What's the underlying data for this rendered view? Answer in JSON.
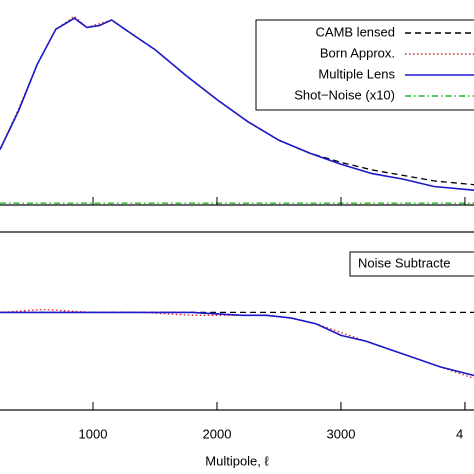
{
  "chart_data": [
    {
      "type": "line",
      "x": [
        250,
        400,
        550,
        700,
        850,
        950,
        1050,
        1150,
        1300,
        1500,
        1750,
        2000,
        2250,
        2500,
        2750,
        3000,
        3250,
        3500,
        3750,
        4073
      ],
      "xlim": [
        250,
        4073
      ],
      "ylim": [
        0,
        1.1
      ],
      "legend": "upper right",
      "series": [
        {
          "name": "CAMB lensed",
          "color": "#000000",
          "style": "dashed",
          "values": [
            0.3,
            0.51,
            0.76,
            0.95,
            1.01,
            0.96,
            0.97,
            1.0,
            0.93,
            0.84,
            0.7,
            0.57,
            0.45,
            0.35,
            0.28,
            0.23,
            0.19,
            0.16,
            0.13,
            0.11
          ]
        },
        {
          "name": "Born Approx.",
          "color": "#e02020",
          "style": "dotted",
          "values": [
            0.3,
            0.52,
            0.76,
            0.95,
            1.02,
            0.96,
            0.98,
            1.0,
            0.93,
            0.84,
            0.7,
            0.57,
            0.45,
            0.35,
            0.28,
            0.22,
            0.17,
            0.14,
            0.1,
            0.08
          ]
        },
        {
          "name": "Multiple Lens",
          "color": "#1a1acc",
          "style": "solid",
          "values": [
            0.3,
            0.51,
            0.76,
            0.95,
            1.01,
            0.96,
            0.97,
            1.0,
            0.93,
            0.84,
            0.7,
            0.57,
            0.45,
            0.35,
            0.28,
            0.22,
            0.17,
            0.14,
            0.1,
            0.08
          ]
        },
        {
          "name": "Shot−Noise (x10)",
          "color": "#22bb22",
          "style": "dashdot",
          "values": [
            0.01,
            0.01,
            0.01,
            0.01,
            0.01,
            0.01,
            0.01,
            0.01,
            0.01,
            0.01,
            0.01,
            0.01,
            0.01,
            0.01,
            0.01,
            0.01,
            0.01,
            0.01,
            0.01,
            0.01
          ]
        }
      ]
    },
    {
      "type": "line",
      "x": [
        250,
        600,
        1000,
        1400,
        1800,
        2200,
        2400,
        2600,
        2800,
        3000,
        3200,
        3400,
        3600,
        3800,
        4073
      ],
      "xlim": [
        250,
        4073
      ],
      "ylim": [
        0.66,
        1.28
      ],
      "xlabel": "Multipole, ℓ",
      "xticks": [
        1000,
        2000,
        3000,
        {
          "value": 4000,
          "label": "4"
        }
      ],
      "annotation": "Noise Subtracte",
      "series": [
        {
          "color": "#000000",
          "style": "dashed",
          "values": [
            1.0,
            1.0,
            1.0,
            1.0,
            1.0,
            1.0,
            1.0,
            1.0,
            1.0,
            1.0,
            1.0,
            1.0,
            1.0,
            1.0,
            1.0
          ]
        },
        {
          "color": "#e02020",
          "style": "dotted",
          "values": [
            1.0,
            1.01,
            1.0,
            1.0,
            0.99,
            0.99,
            0.99,
            0.98,
            0.96,
            0.93,
            0.9,
            0.87,
            0.84,
            0.81,
            0.77
          ]
        },
        {
          "color": "#1a1acc",
          "style": "solid",
          "values": [
            1.0,
            1.0,
            1.0,
            1.0,
            1.0,
            0.99,
            0.99,
            0.98,
            0.96,
            0.92,
            0.9,
            0.87,
            0.84,
            0.81,
            0.78
          ]
        }
      ]
    }
  ]
}
